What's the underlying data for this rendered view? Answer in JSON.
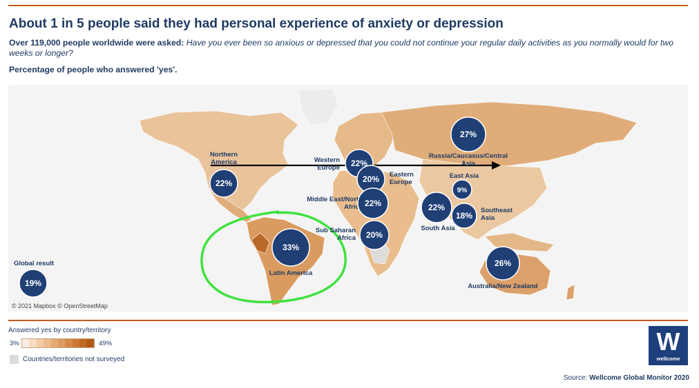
{
  "header": {
    "title": "About 1 in 5 people said they had personal experience of anxiety or depression",
    "question_lead": "Over 119,000 people worldwide were asked:",
    "question_text": "Have you ever been so anxious or depressed that you could not continue your regular daily activities as you normally would for two weeks or longer?",
    "subtitle": "Percentage of people who answered 'yes'."
  },
  "map": {
    "copyright": "© 2021 Mapbox © OpenStreetMap",
    "regions": [
      {
        "key": "northern-america",
        "name_lines": [
          "Northern",
          "America"
        ],
        "value": "22%"
      },
      {
        "key": "western-europe",
        "name_lines": [
          "Western",
          "Europe"
        ],
        "value": "22%"
      },
      {
        "key": "eastern-europe",
        "name_lines": [
          "Eastern",
          "Europe"
        ],
        "value": "20%"
      },
      {
        "key": "middle-east-north-africa",
        "name_lines": [
          "Middle East/North",
          "Africa"
        ],
        "value": "22%"
      },
      {
        "key": "sub-saharan-africa",
        "name_lines": [
          "Sub Saharan",
          "Africa"
        ],
        "value": "20%"
      },
      {
        "key": "russia-caucasus-central-asia",
        "name_lines": [
          "Russia/Caucasus/Central",
          "Asia"
        ],
        "value": "27%"
      },
      {
        "key": "east-asia",
        "name_lines": [
          "East Asia"
        ],
        "value": "9%"
      },
      {
        "key": "south-asia",
        "name_lines": [
          "South Asia"
        ],
        "value": "22%"
      },
      {
        "key": "southeast-asia",
        "name_lines": [
          "Southeast",
          "Asia"
        ],
        "value": "18%"
      },
      {
        "key": "latin-america",
        "name_lines": [
          "Latin America"
        ],
        "value": "33%"
      },
      {
        "key": "australia-new-zealand",
        "name_lines": [
          "Australia/New Zealand"
        ],
        "value": "26%"
      }
    ],
    "global": {
      "label": "Global result",
      "value": "19%"
    }
  },
  "legend": {
    "title": "Answered yes by country/territory",
    "min_label": "3%",
    "max_label": "49%",
    "scale_colors": [
      "#fbeee2",
      "#f6dcc3",
      "#f0cba6",
      "#ebbb8c",
      "#e4aa74",
      "#dd9a5e",
      "#d58a48",
      "#cc7a35",
      "#c06a24",
      "#b05a15"
    ],
    "not_surveyed_label": "Countries/territories not surveyed"
  },
  "colors": {
    "bubble": "#1f3f75",
    "land": "#e9c39a",
    "land_dark": "#cf8a4a",
    "annotation_green": "#3ee23e",
    "arrow": "#000000"
  },
  "branding": {
    "logo_letter": "W",
    "logo_name": "wellcome"
  },
  "footer": {
    "source_prefix": "Source:",
    "source_name": "Wellcome Global Monitor 2020"
  }
}
